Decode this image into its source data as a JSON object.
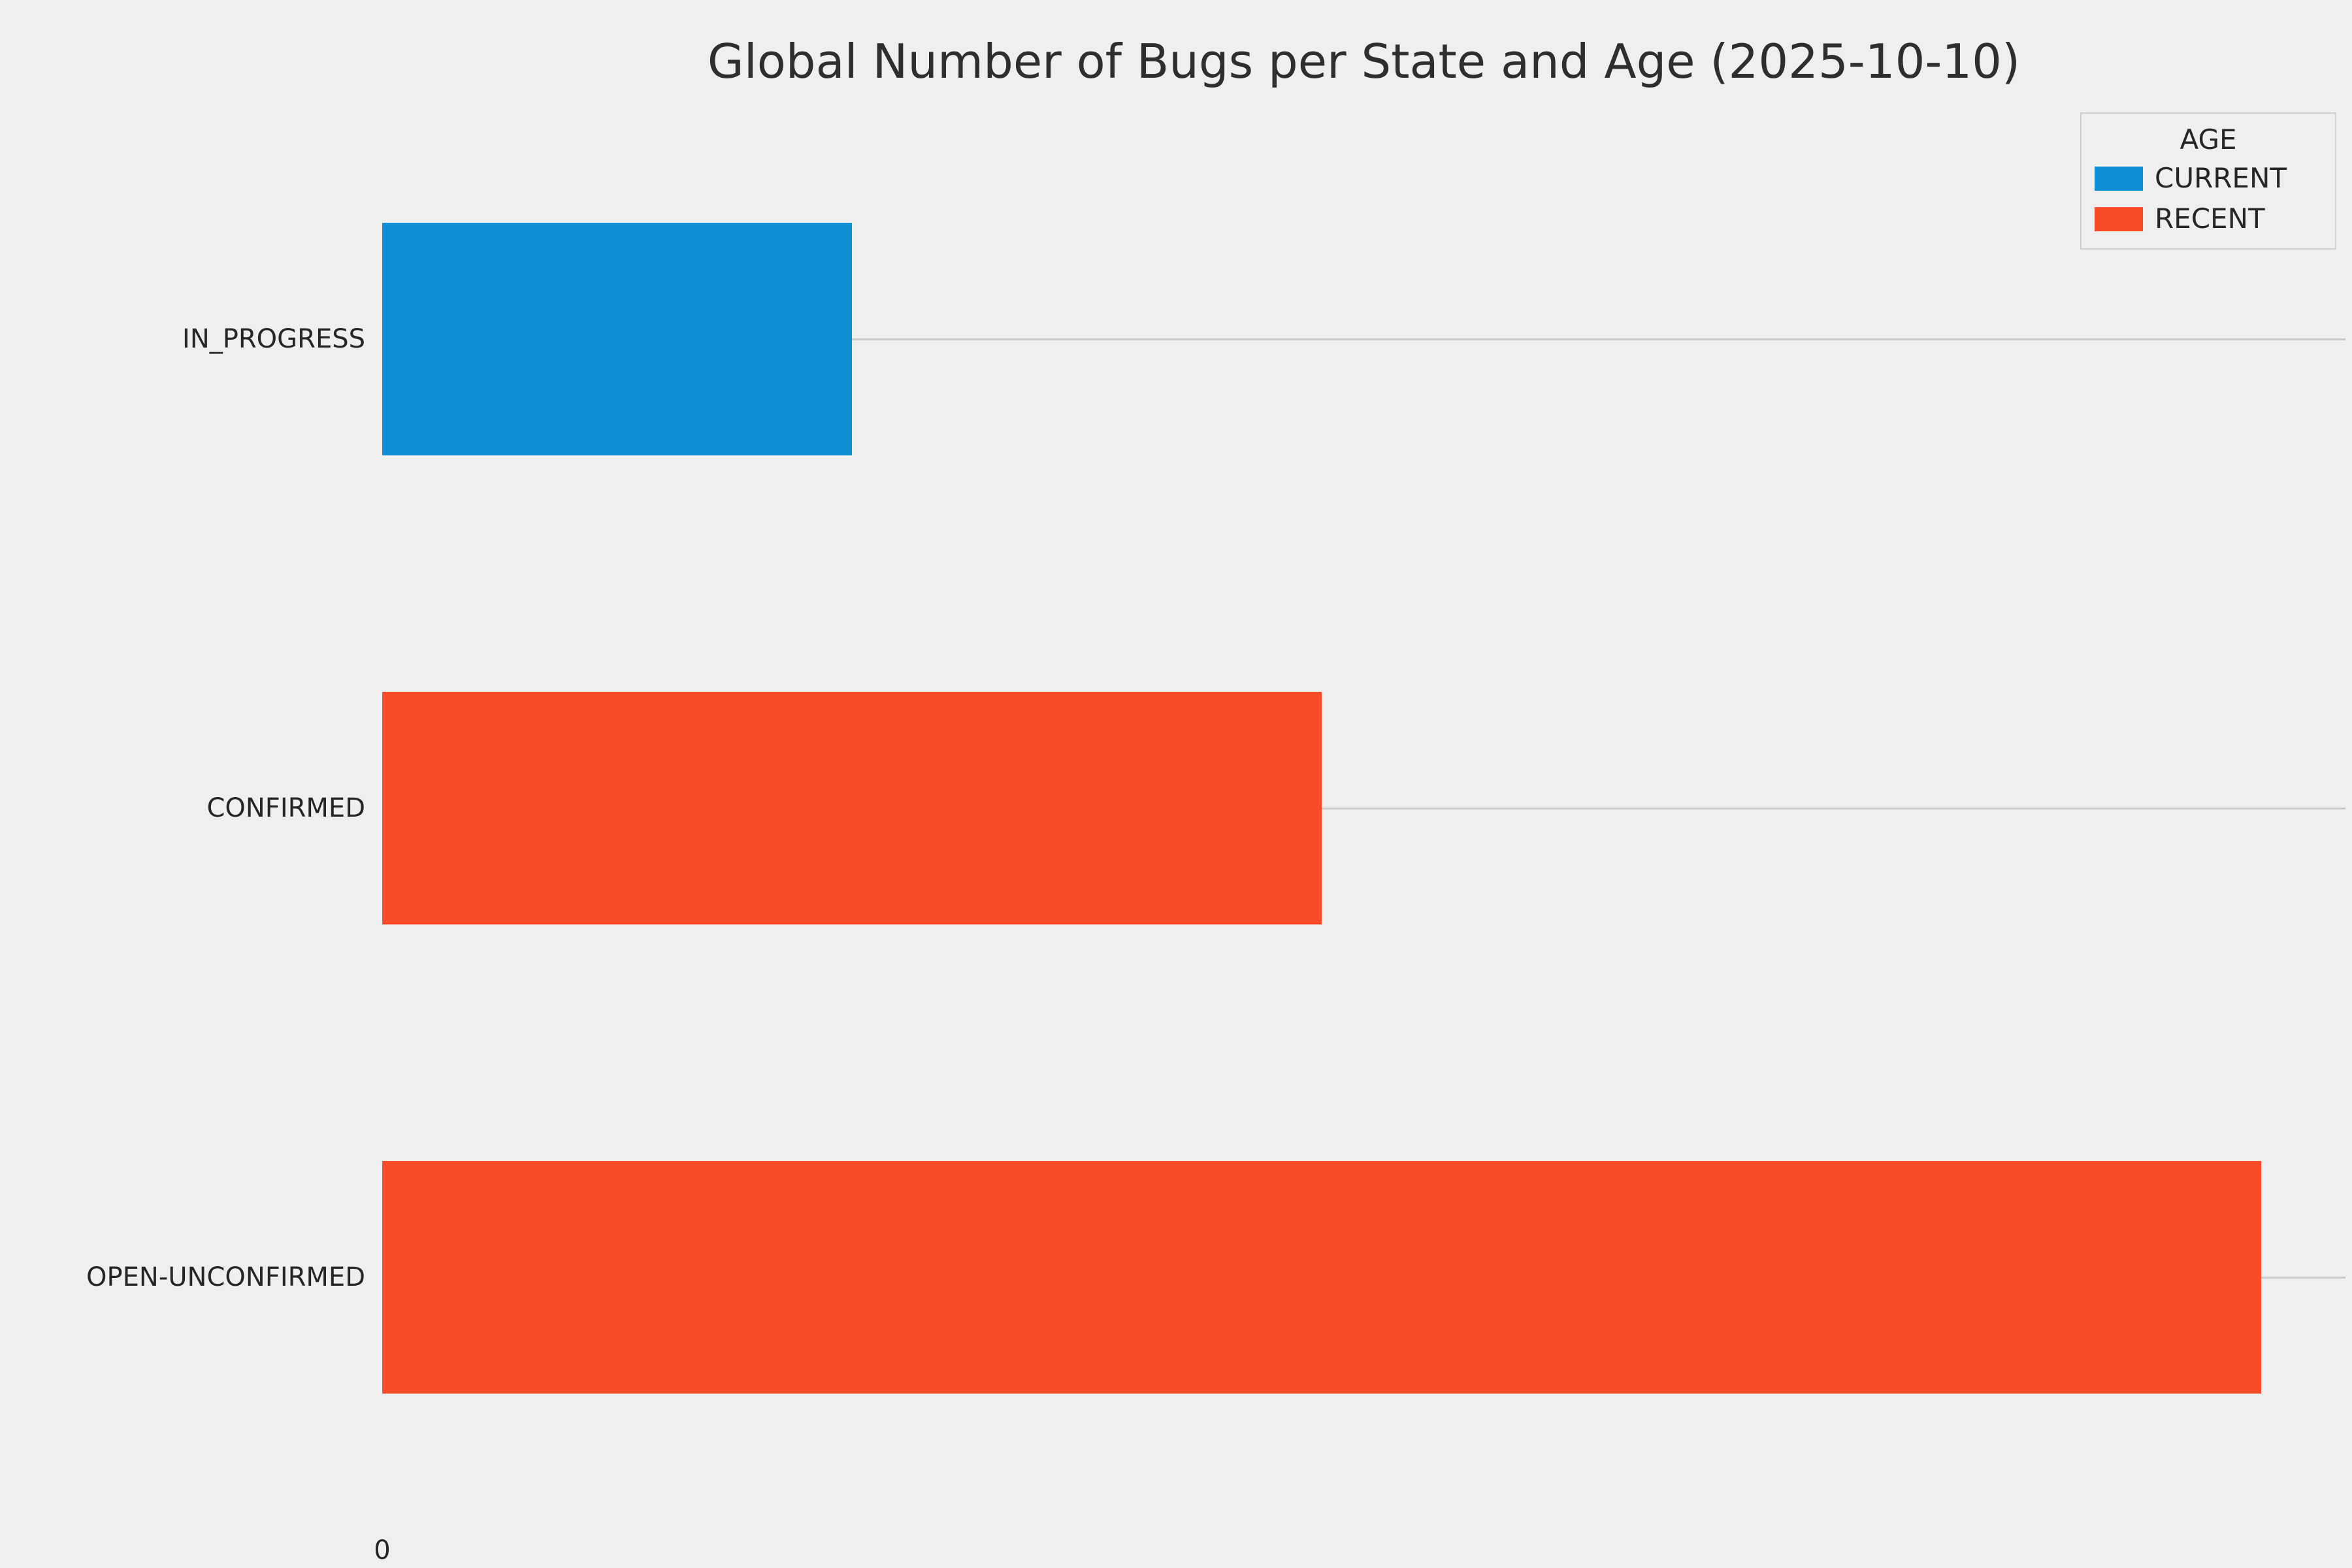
{
  "chart_data": {
    "type": "bar",
    "orientation": "horizontal",
    "title": "Global Number of Bugs per State and Age (2025-10-10)",
    "categories": [
      "IN_PROGRESS",
      "CONFIRMED",
      "OPEN-UNCONFIRMED"
    ],
    "series": [
      {
        "name": "CURRENT",
        "color": "#0e8fd6",
        "values": [
          0.25,
          0,
          0
        ]
      },
      {
        "name": "RECENT",
        "color": "#fa4b28",
        "values": [
          0,
          0.5,
          1.0
        ]
      }
    ],
    "bars": [
      {
        "category": "IN_PROGRESS",
        "series": "CURRENT",
        "value": 0.25
      },
      {
        "category": "CONFIRMED",
        "series": "RECENT",
        "value": 0.5
      },
      {
        "category": "OPEN-UNCONFIRMED",
        "series": "RECENT",
        "value": 1.0
      }
    ],
    "value_scale": "relative_to_longest_bar (no numeric value labels shown on chart; only x tick '0')",
    "xlim": [
      0,
      1.045
    ],
    "x_tick_labels": [
      "0"
    ],
    "xlabel": "",
    "ylabel": "",
    "legend": {
      "title": "AGE",
      "entries": [
        "CURRENT",
        "RECENT"
      ],
      "position": "upper-right"
    },
    "grid": {
      "horizontal_gridlines_per_category": true,
      "color": "#cbcbcb"
    },
    "colors": {
      "background": "#efefef",
      "text": "#262626",
      "current": "#0e8fd6",
      "recent": "#fa4b28"
    }
  }
}
